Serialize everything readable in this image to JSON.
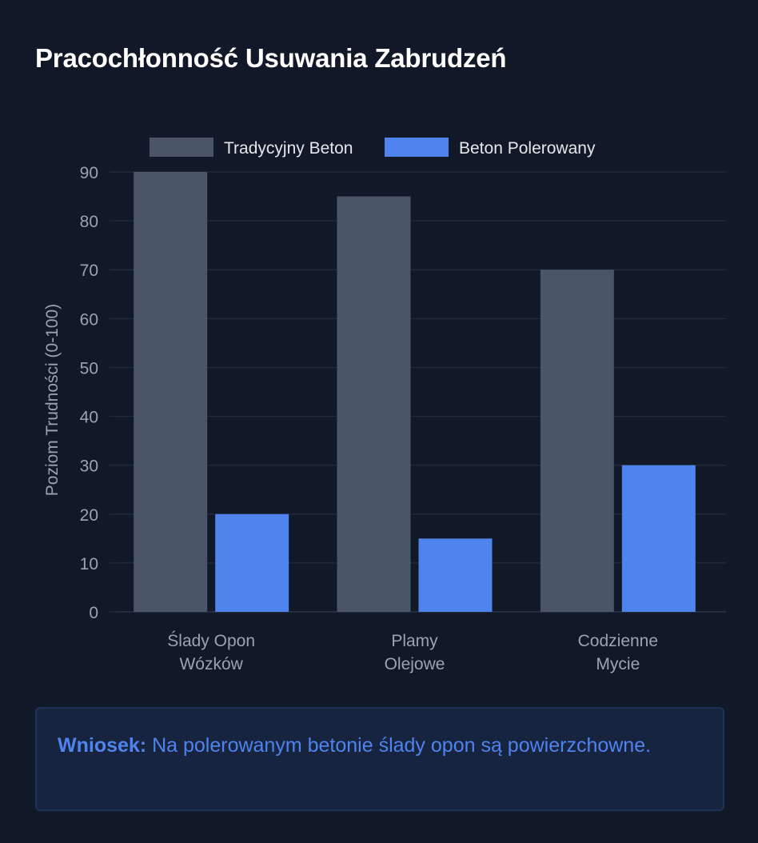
{
  "header": {
    "title": "Pracochłonność Usuwania Zabrudzeń"
  },
  "chart_data": {
    "type": "bar",
    "categories": [
      [
        "Ślady Opon",
        "Wózków"
      ],
      [
        "Plamy",
        "Olejowe"
      ],
      [
        "Codzienne",
        "Mycie"
      ]
    ],
    "series": [
      {
        "name": "Tradycyjny Beton",
        "values": [
          90,
          85,
          70
        ],
        "color": "#4a5568"
      },
      {
        "name": "Beton Polerowany",
        "values": [
          20,
          15,
          30
        ],
        "color": "#4f83ee"
      }
    ],
    "ylabel": "Poziom Trudności (0-100)",
    "ylim": [
      0,
      90
    ],
    "yticks": [
      0,
      10,
      20,
      30,
      40,
      50,
      60,
      70,
      80,
      90
    ],
    "grid": true,
    "legend": "top-center"
  },
  "conclusion": {
    "label": "Wniosek:",
    "text": "Na polerowanym betonie ślady opon są powierzchowne."
  },
  "colors": {
    "background": "#111827",
    "grid": "#1f2a3a",
    "axis_text": "#9ca3af",
    "accent": "#4f83ee"
  }
}
